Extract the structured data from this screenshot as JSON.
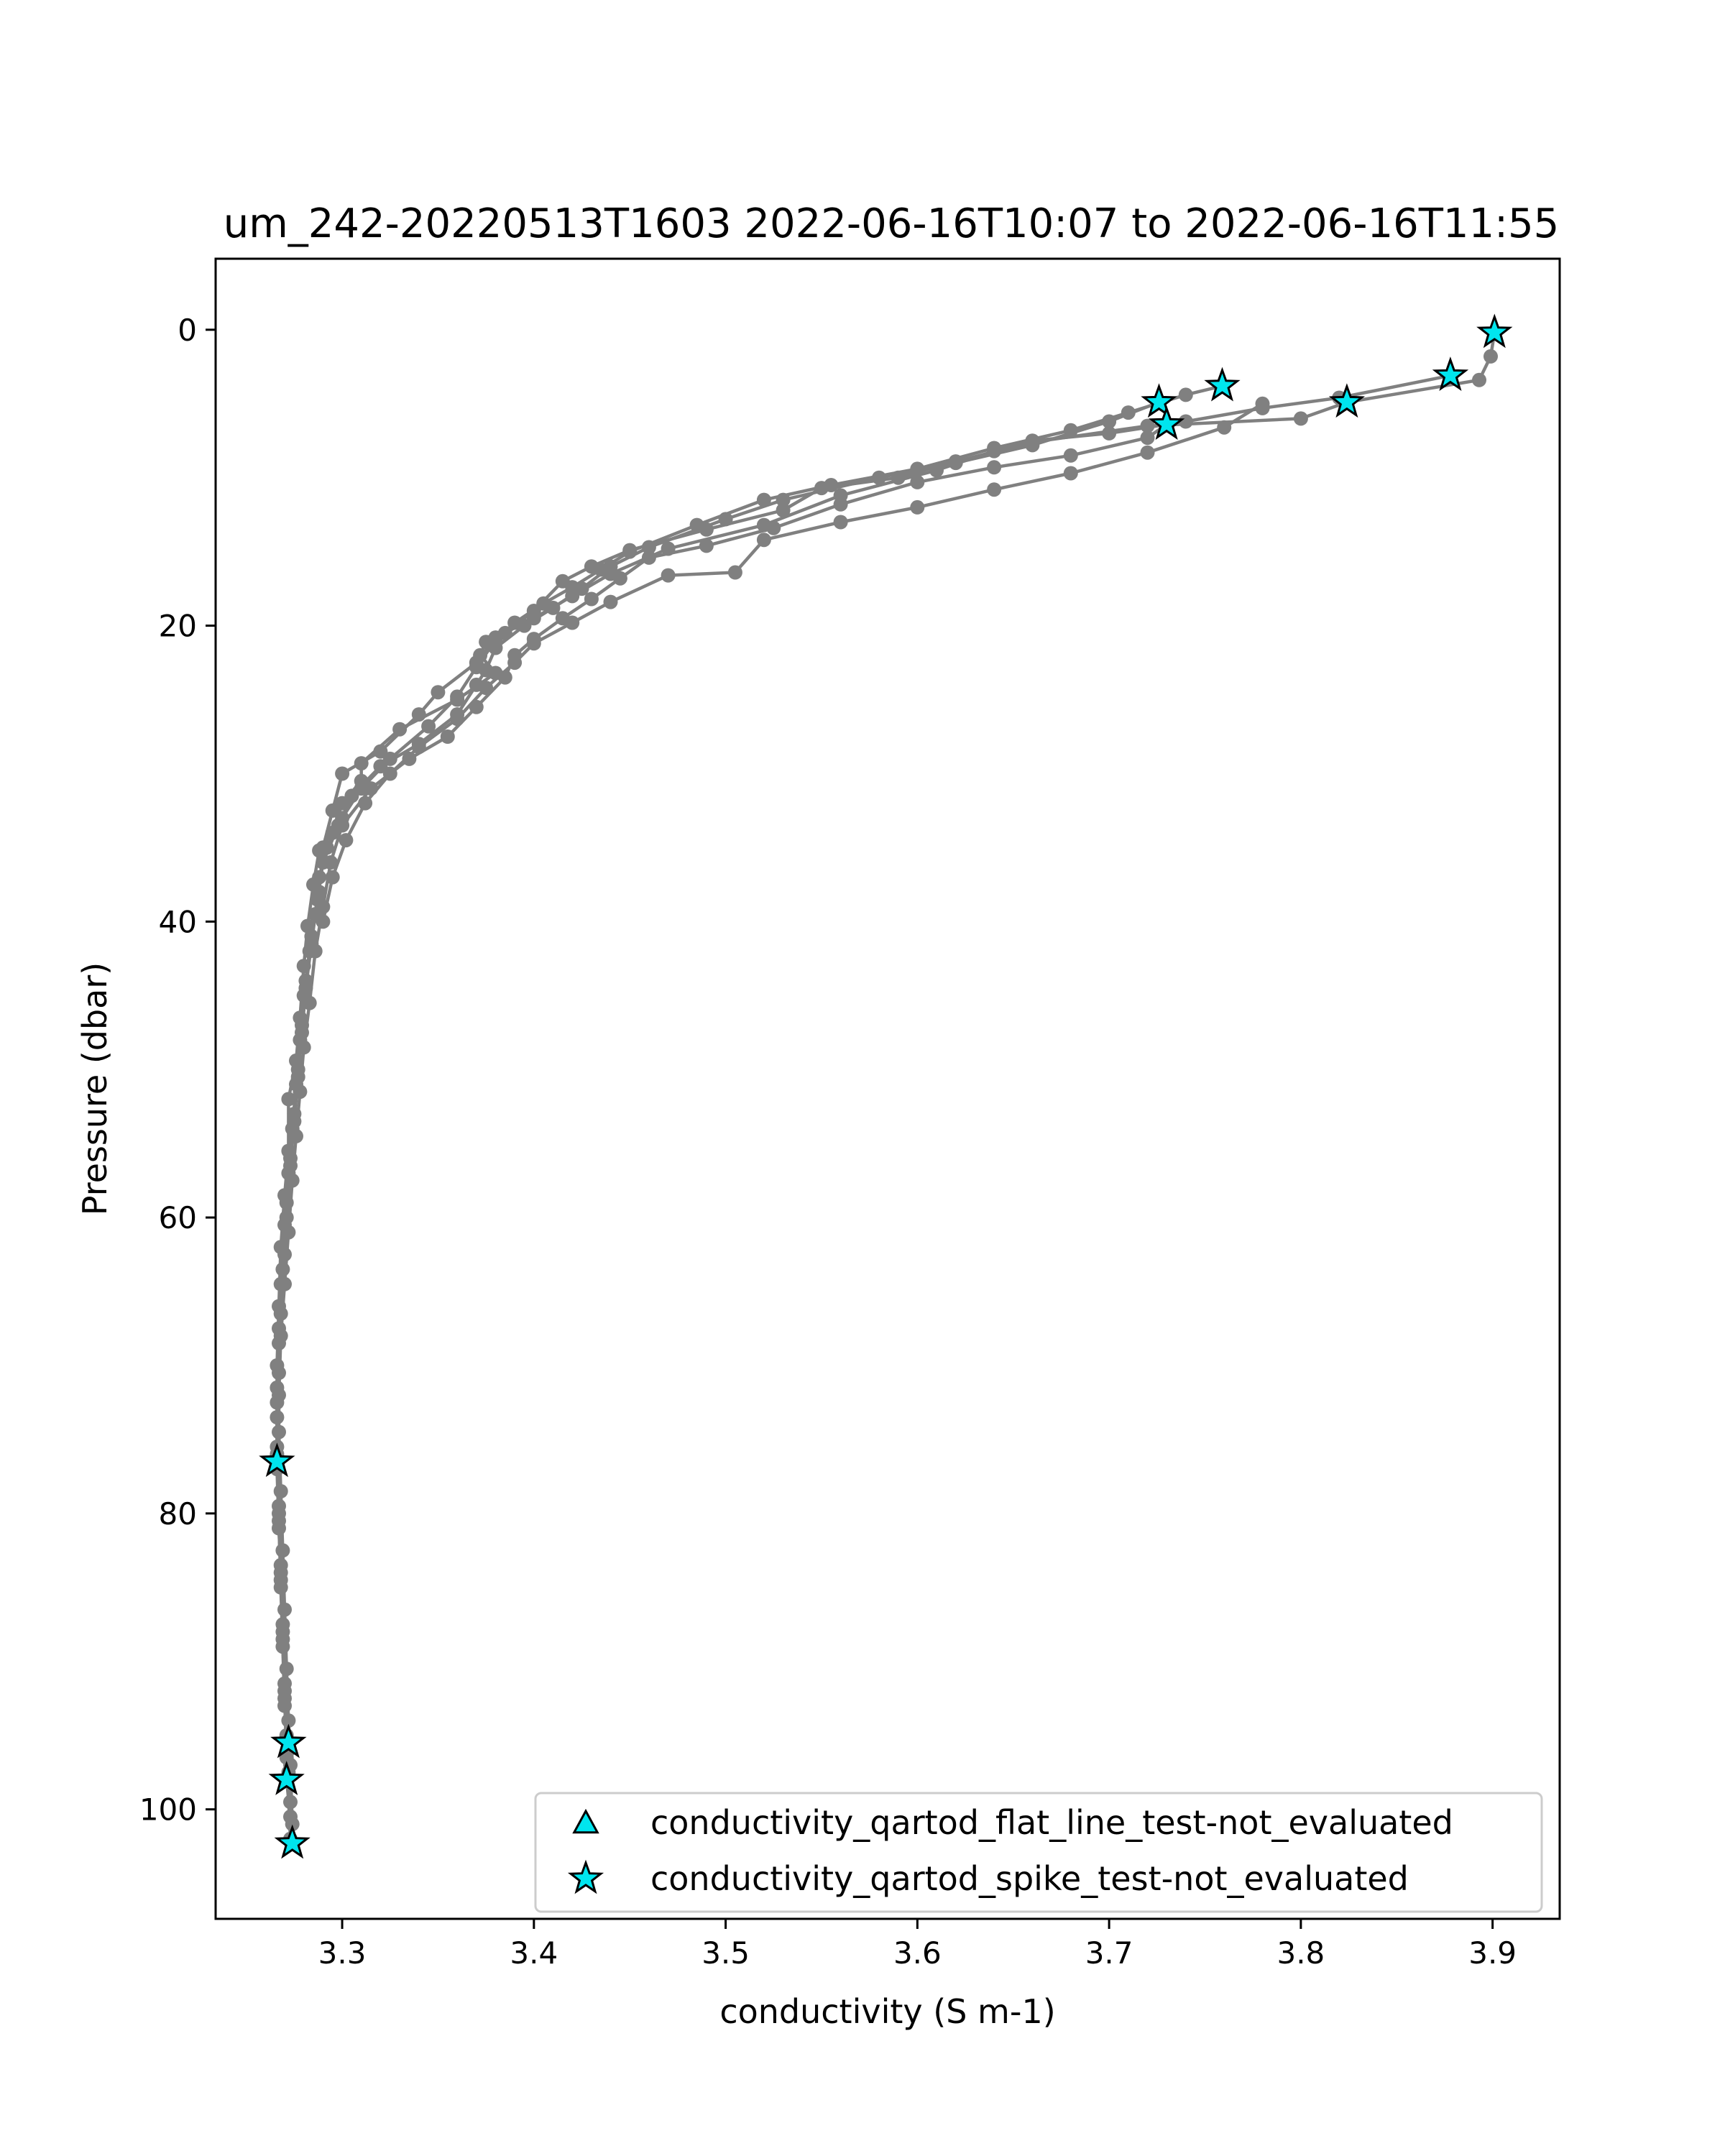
{
  "chart_data": {
    "type": "scatter",
    "title": "um_242-20220513T1603 2022-06-16T10:07 to 2022-06-16T11:55",
    "xlabel": "conductivity (S m-1)",
    "ylabel": "Pressure (dbar)",
    "xlim": [
      3.234,
      3.935
    ],
    "ylim": [
      107.4,
      -4.8
    ],
    "y_inverted": true,
    "grid": false,
    "legend_position": "lower-right",
    "x_ticks": [
      3.3,
      3.4,
      3.5,
      3.6,
      3.7,
      3.8,
      3.9
    ],
    "x_tick_labels": [
      "3.3",
      "3.4",
      "3.5",
      "3.6",
      "3.7",
      "3.8",
      "3.9"
    ],
    "y_ticks": [
      0,
      20,
      40,
      60,
      80,
      100
    ],
    "y_tick_labels": [
      "0",
      "20",
      "40",
      "60",
      "80",
      "100"
    ],
    "colors": {
      "profile": "#808080",
      "marker_fill": "#00e5ee",
      "marker_edge": "#000000"
    },
    "profiles": [
      [
        [
          3.901,
          0.2
        ],
        [
          3.899,
          1.8
        ],
        [
          3.893,
          3.4
        ],
        [
          3.824,
          4.9
        ],
        [
          3.8,
          6.0
        ],
        [
          3.72,
          6.5
        ],
        [
          3.66,
          7.6
        ],
        [
          3.62,
          8.9
        ],
        [
          3.59,
          10.0
        ],
        [
          3.55,
          10.7
        ],
        [
          3.53,
          12.2
        ],
        [
          3.49,
          13.5
        ],
        [
          3.45,
          14.9
        ],
        [
          3.43,
          16.0
        ],
        [
          3.415,
          17.0
        ],
        [
          3.4,
          19.0
        ],
        [
          3.385,
          20.5
        ],
        [
          3.375,
          21.1
        ],
        [
          3.372,
          22.0
        ],
        [
          3.38,
          23.2
        ],
        [
          3.36,
          25.0
        ],
        [
          3.33,
          27.0
        ],
        [
          3.31,
          29.3
        ],
        [
          3.31,
          30.5
        ],
        [
          3.3,
          32.0
        ],
        [
          3.295,
          34.0
        ],
        [
          3.288,
          35.2
        ],
        [
          3.285,
          37.5
        ],
        [
          3.282,
          40.3
        ],
        [
          3.28,
          43.0
        ],
        [
          3.278,
          46.5
        ],
        [
          3.276,
          49.4
        ],
        [
          3.272,
          52.0
        ],
        [
          3.272,
          55.5
        ],
        [
          3.27,
          58.5
        ],
        [
          3.268,
          62.0
        ],
        [
          3.267,
          66.0
        ],
        [
          3.266,
          70.0
        ],
        [
          3.266,
          73.5
        ],
        [
          3.266,
          76.5
        ],
        [
          3.267,
          80.5
        ],
        [
          3.268,
          85.0
        ],
        [
          3.269,
          89.0
        ],
        [
          3.27,
          93.0
        ],
        [
          3.272,
          95.5
        ],
        [
          3.271,
          98.0
        ],
        [
          3.273,
          100.5
        ],
        [
          3.274,
          102.3
        ]
      ],
      [
        [
          3.878,
          3.1
        ],
        [
          3.82,
          4.6
        ],
        [
          3.78,
          5.3
        ],
        [
          3.74,
          6.2
        ],
        [
          3.7,
          7.0
        ],
        [
          3.66,
          7.5
        ],
        [
          3.64,
          8.2
        ],
        [
          3.61,
          9.5
        ],
        [
          3.56,
          11.2
        ],
        [
          3.52,
          13.2
        ],
        [
          3.47,
          14.8
        ],
        [
          3.44,
          16.5
        ],
        [
          3.42,
          18.0
        ],
        [
          3.4,
          19.5
        ],
        [
          3.38,
          20.8
        ],
        [
          3.37,
          22.5
        ],
        [
          3.35,
          24.5
        ],
        [
          3.34,
          26.0
        ],
        [
          3.32,
          28.5
        ],
        [
          3.3,
          30.0
        ],
        [
          3.295,
          32.5
        ],
        [
          3.29,
          35.0
        ],
        [
          3.288,
          38.0
        ],
        [
          3.284,
          41.0
        ],
        [
          3.281,
          44.0
        ],
        [
          3.279,
          47.0
        ],
        [
          3.277,
          50.0
        ],
        [
          3.275,
          53.0
        ],
        [
          3.273,
          56.0
        ],
        [
          3.271,
          59.0
        ],
        [
          3.27,
          62.5
        ],
        [
          3.268,
          66.5
        ],
        [
          3.267,
          70.5
        ],
        [
          3.267,
          74.5
        ],
        [
          3.268,
          78.5
        ],
        [
          3.269,
          82.5
        ],
        [
          3.27,
          86.5
        ],
        [
          3.271,
          90.5
        ],
        [
          3.272,
          94.0
        ],
        [
          3.273,
          97.0
        ],
        [
          3.274,
          101.0
        ]
      ],
      [
        [
          3.759,
          3.8
        ],
        [
          3.74,
          4.4
        ],
        [
          3.71,
          5.6
        ],
        [
          3.68,
          6.8
        ],
        [
          3.64,
          8.0
        ],
        [
          3.6,
          9.4
        ],
        [
          3.555,
          10.5
        ],
        [
          3.52,
          11.5
        ],
        [
          3.485,
          13.2
        ],
        [
          3.45,
          15.0
        ],
        [
          3.435,
          16.2
        ],
        [
          3.42,
          17.4
        ],
        [
          3.405,
          18.5
        ],
        [
          3.39,
          19.8
        ],
        [
          3.38,
          21.0
        ],
        [
          3.37,
          22.8
        ],
        [
          3.36,
          24.8
        ],
        [
          3.345,
          26.8
        ],
        [
          3.325,
          29.0
        ],
        [
          3.31,
          31.0
        ],
        [
          3.3,
          33.0
        ],
        [
          3.292,
          35.0
        ],
        [
          3.288,
          37.0
        ],
        [
          3.286,
          39.5
        ],
        [
          3.283,
          42.0
        ],
        [
          3.28,
          45.0
        ],
        [
          3.278,
          48.0
        ],
        [
          3.276,
          51.0
        ],
        [
          3.274,
          54.0
        ],
        [
          3.272,
          57.0
        ],
        [
          3.27,
          60.5
        ],
        [
          3.268,
          64.5
        ],
        [
          3.267,
          68.5
        ],
        [
          3.266,
          72.5
        ],
        [
          3.266,
          77.0
        ],
        [
          3.267,
          81.0
        ],
        [
          3.268,
          84.0
        ],
        [
          3.269,
          88.0
        ],
        [
          3.27,
          92.0
        ],
        [
          3.272,
          96.0
        ],
        [
          3.273,
          99.5
        ]
      ],
      [
        [
          3.726,
          4.9
        ],
        [
          3.7,
          6.2
        ],
        [
          3.66,
          7.8
        ],
        [
          3.62,
          9.0
        ],
        [
          3.58,
          10.0
        ],
        [
          3.53,
          11.5
        ],
        [
          3.5,
          12.8
        ],
        [
          3.46,
          14.7
        ],
        [
          3.44,
          16.0
        ],
        [
          3.425,
          17.5
        ],
        [
          3.41,
          18.8
        ],
        [
          3.395,
          20.0
        ],
        [
          3.38,
          21.5
        ],
        [
          3.375,
          23.0
        ],
        [
          3.37,
          24.0
        ],
        [
          3.36,
          26.0
        ],
        [
          3.34,
          28.0
        ],
        [
          3.32,
          29.5
        ],
        [
          3.305,
          31.5
        ],
        [
          3.298,
          33.5
        ],
        [
          3.29,
          36.0
        ],
        [
          3.287,
          38.5
        ],
        [
          3.284,
          41.5
        ],
        [
          3.281,
          44.5
        ],
        [
          3.279,
          47.5
        ],
        [
          3.277,
          50.5
        ],
        [
          3.275,
          53.5
        ],
        [
          3.273,
          56.5
        ],
        [
          3.271,
          60.0
        ],
        [
          3.269,
          63.5
        ],
        [
          3.267,
          67.5
        ],
        [
          3.266,
          71.5
        ],
        [
          3.266,
          75.5
        ],
        [
          3.267,
          79.5
        ],
        [
          3.268,
          83.5
        ],
        [
          3.269,
          87.5
        ],
        [
          3.27,
          91.5
        ],
        [
          3.271,
          95.0
        ],
        [
          3.272,
          97.5
        ]
      ],
      [
        [
          3.73,
          6.4
        ],
        [
          3.72,
          7.3
        ],
        [
          3.68,
          8.5
        ],
        [
          3.64,
          9.3
        ],
        [
          3.6,
          10.3
        ],
        [
          3.56,
          11.8
        ],
        [
          3.525,
          13.4
        ],
        [
          3.49,
          14.6
        ],
        [
          3.46,
          15.4
        ],
        [
          3.445,
          16.8
        ],
        [
          3.43,
          18.2
        ],
        [
          3.415,
          19.5
        ],
        [
          3.4,
          20.9
        ],
        [
          3.39,
          22.0
        ],
        [
          3.385,
          23.5
        ],
        [
          3.37,
          25.5
        ],
        [
          3.355,
          27.5
        ],
        [
          3.335,
          29.0
        ],
        [
          3.315,
          31.0
        ],
        [
          3.3,
          33.5
        ],
        [
          3.294,
          36.0
        ],
        [
          3.29,
          39.0
        ],
        [
          3.286,
          42.0
        ],
        [
          3.283,
          45.5
        ],
        [
          3.28,
          48.5
        ],
        [
          3.278,
          51.5
        ],
        [
          3.276,
          54.5
        ],
        [
          3.274,
          57.5
        ],
        [
          3.272,
          61.0
        ],
        [
          3.27,
          64.5
        ],
        [
          3.268,
          68.0
        ],
        [
          3.267,
          72.0
        ],
        [
          3.266,
          76.0
        ],
        [
          3.267,
          80.0
        ],
        [
          3.268,
          84.5
        ],
        [
          3.269,
          88.5
        ],
        [
          3.27,
          92.5
        ],
        [
          3.271,
          96.5
        ],
        [
          3.273,
          102.0
        ]
      ],
      [
        [
          3.78,
          5.0
        ],
        [
          3.76,
          6.6
        ],
        [
          3.72,
          8.3
        ],
        [
          3.68,
          9.7
        ],
        [
          3.64,
          10.8
        ],
        [
          3.6,
          12.0
        ],
        [
          3.56,
          13.0
        ],
        [
          3.52,
          14.2
        ],
        [
          3.505,
          16.4
        ],
        [
          3.47,
          16.6
        ],
        [
          3.44,
          18.4
        ],
        [
          3.42,
          19.8
        ],
        [
          3.4,
          21.2
        ],
        [
          3.39,
          22.5
        ],
        [
          3.375,
          24.2
        ],
        [
          3.36,
          26.3
        ],
        [
          3.34,
          28.2
        ],
        [
          3.325,
          30.0
        ],
        [
          3.312,
          32.0
        ],
        [
          3.302,
          34.5
        ],
        [
          3.295,
          37.0
        ],
        [
          3.29,
          40.0
        ]
      ]
    ],
    "series": [
      {
        "name": "conductivity_qartod_flat_line_test-not_evaluated",
        "marker": "triangle",
        "points": []
      },
      {
        "name": "conductivity_qartod_spike_test-not_evaluated",
        "marker": "star",
        "points": [
          [
            3.901,
            0.2
          ],
          [
            3.878,
            3.1
          ],
          [
            3.759,
            3.8
          ],
          [
            3.824,
            4.9
          ],
          [
            3.726,
            4.9
          ],
          [
            3.73,
            6.4
          ],
          [
            3.266,
            76.5
          ],
          [
            3.272,
            95.5
          ],
          [
            3.271,
            98.0
          ],
          [
            3.274,
            102.3
          ]
        ]
      }
    ]
  }
}
